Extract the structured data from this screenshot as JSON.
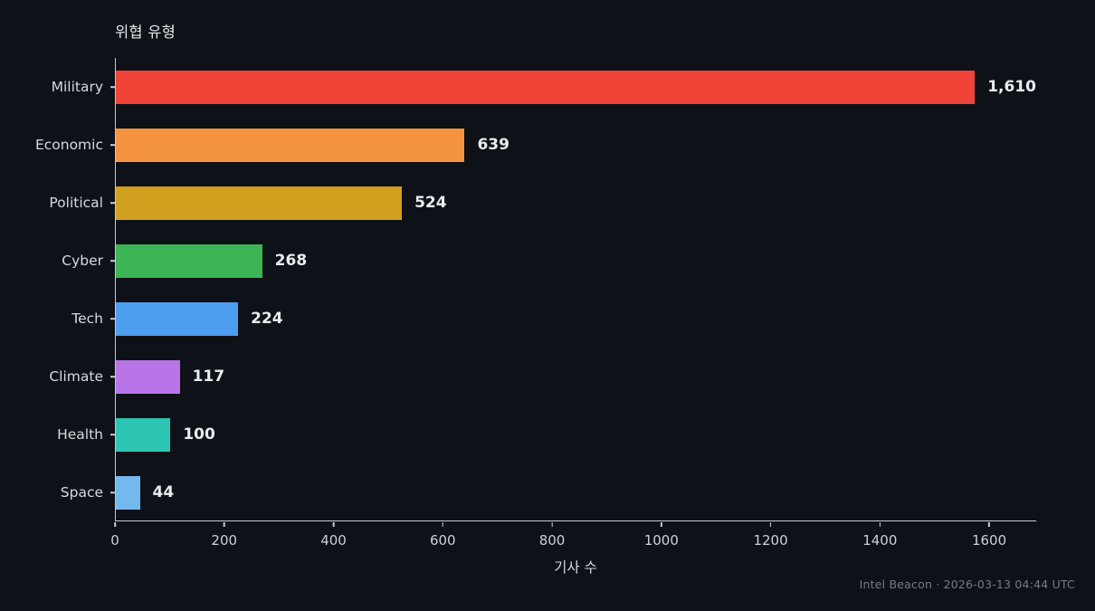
{
  "title": "위협 유형",
  "footer": "Intel Beacon · 2026-03-13 04:44 UTC",
  "colors": {
    "background": "#0e1117",
    "axis": "#c8ccd2",
    "text": "#e9ecef",
    "muted": "#757c86"
  },
  "chart_data": {
    "type": "bar",
    "orientation": "horizontal",
    "title": "위협 유형",
    "xlabel": "기사 수",
    "ylabel": "",
    "categories": [
      "Military",
      "Economic",
      "Political",
      "Cyber",
      "Tech",
      "Climate",
      "Health",
      "Space"
    ],
    "values": [
      1610,
      639,
      524,
      268,
      224,
      117,
      100,
      44
    ],
    "value_labels": [
      "1,610",
      "639",
      "524",
      "268",
      "224",
      "117",
      "100",
      "44"
    ],
    "bar_colors": [
      "#f04438",
      "#f59440",
      "#d2a01f",
      "#3db455",
      "#4e9ef0",
      "#b875e8",
      "#2cc5b2",
      "#73b9ee"
    ],
    "xlim": [
      0,
      1686
    ],
    "xticks": [
      0,
      200,
      400,
      600,
      800,
      1000,
      1200,
      1400,
      1600
    ],
    "grid": false,
    "legend": null
  }
}
